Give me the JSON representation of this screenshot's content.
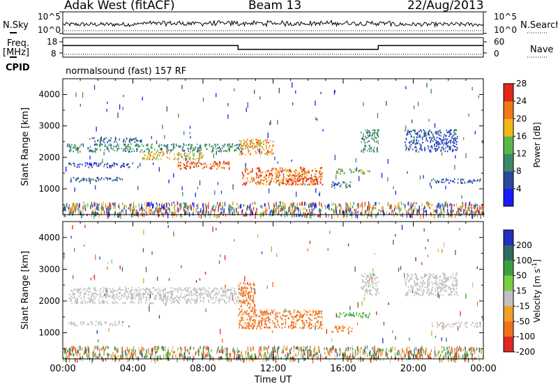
{
  "header": {
    "station": "Adak West (fitACF)",
    "beam": "Beam 13",
    "date": "22/Aug/2013"
  },
  "status_panel": {
    "nsky_label": "N.Sky",
    "nsky_ticks": [
      "10^5",
      "10^0"
    ],
    "nsearch_label": "N.Search",
    "nsearch_ticks": [
      "10^5",
      "10^0"
    ],
    "freq_label": "Freq.",
    "freq_unit": "[MHz]",
    "freq_ticks": [
      18,
      8
    ],
    "nave_label": "Nave",
    "nave_ticks": [
      60,
      0
    ],
    "cpid_label": "CPID",
    "cpid_text": "normalsound (fast) 157 RF",
    "freq_steps": [
      {
        "start": 0,
        "end": 10,
        "freq_mhz": 14.6
      },
      {
        "start": 10,
        "end": 18,
        "freq_mhz": 11.2
      },
      {
        "start": 18,
        "end": 24,
        "freq_mhz": 14.6
      }
    ],
    "nave_level": 8
  },
  "chart_data": [
    {
      "type": "heatmap",
      "title": "",
      "ylabel": "Slant Range [km]",
      "xlabel": "",
      "xlim": [
        0,
        24
      ],
      "ylim": [
        180,
        4500
      ],
      "yticks": [
        1000,
        2000,
        3000,
        4000
      ],
      "colorbar": {
        "label": "Power [dB]",
        "ticks": [
          "4",
          "8",
          "12",
          "16",
          "20",
          "24",
          "28"
        ],
        "colors": [
          "#1a1aff",
          "#2a4aa0",
          "#3c8a6a",
          "#58b84c",
          "#f0b818",
          "#f07818",
          "#e02818"
        ]
      },
      "features": [
        {
          "t0": 0.3,
          "t1": 10.2,
          "r0": 2200,
          "r1": 2450,
          "value": 10
        },
        {
          "t0": 1.5,
          "t1": 4.5,
          "r0": 2500,
          "r1": 2650,
          "value": 7
        },
        {
          "t0": 4.5,
          "t1": 8.0,
          "r0": 1950,
          "r1": 2200,
          "value": 18
        },
        {
          "t0": 6.5,
          "t1": 9.5,
          "r0": 1650,
          "r1": 1900,
          "value": 24
        },
        {
          "t0": 0.3,
          "t1": 4.0,
          "r0": 1700,
          "r1": 1850,
          "value": 5
        },
        {
          "t0": 0.3,
          "t1": 3.5,
          "r0": 1250,
          "r1": 1380,
          "value": 8
        },
        {
          "t0": 10.0,
          "t1": 12.0,
          "r0": 2100,
          "r1": 2600,
          "value": 20
        },
        {
          "t0": 10.2,
          "t1": 14.8,
          "r0": 1150,
          "r1": 1700,
          "value": 22
        },
        {
          "t0": 12.5,
          "t1": 14.5,
          "r0": 1150,
          "r1": 1350,
          "value": 27
        },
        {
          "t0": 15.5,
          "t1": 17.5,
          "r0": 1500,
          "r1": 1650,
          "value": 14
        },
        {
          "t0": 15.3,
          "t1": 16.5,
          "r0": 1050,
          "r1": 1250,
          "value": 8
        },
        {
          "t0": 17.0,
          "t1": 18.0,
          "r0": 2200,
          "r1": 2900,
          "value": 10
        },
        {
          "t0": 19.5,
          "t1": 22.5,
          "r0": 2200,
          "r1": 2900,
          "value": 6
        },
        {
          "t0": 21.0,
          "t1": 23.8,
          "r0": 1200,
          "r1": 1350,
          "value": 6
        }
      ]
    },
    {
      "type": "heatmap",
      "title": "",
      "ylabel": "Slant Range [km]",
      "xlabel": "Time UT",
      "xlim": [
        0,
        24
      ],
      "ylim": [
        180,
        4500
      ],
      "yticks": [
        1000,
        2000,
        3000,
        4000
      ],
      "xticks": [
        "00:00",
        "04:00",
        "08:00",
        "12:00",
        "16:00",
        "20:00",
        "00:00"
      ],
      "colorbar": {
        "label": "Velocity [m s^-1]",
        "ticks": [
          "200",
          "100",
          "50",
          "15",
          "-15",
          "-50",
          "-100",
          "-200"
        ],
        "colors": [
          "#2030c0",
          "#306a60",
          "#3ca040",
          "#78d040",
          "#c0c0c0",
          "#f0a028",
          "#f07020",
          "#e02820"
        ]
      },
      "features": [
        {
          "t0": 0.3,
          "t1": 10.2,
          "r0": 1950,
          "r1": 2450,
          "value": 0
        },
        {
          "t0": 0.3,
          "t1": 3.5,
          "r0": 1250,
          "r1": 1380,
          "value": 0
        },
        {
          "t0": 10.0,
          "t1": 14.8,
          "r0": 1150,
          "r1": 1750,
          "value": -60
        },
        {
          "t0": 10.0,
          "t1": 11.0,
          "r0": 1750,
          "r1": 2600,
          "value": -60
        },
        {
          "t0": 15.5,
          "t1": 17.5,
          "r0": 1500,
          "r1": 1650,
          "value": 40
        },
        {
          "t0": 15.3,
          "t1": 16.5,
          "r0": 1050,
          "r1": 1250,
          "value": -60
        },
        {
          "t0": 17.0,
          "t1": 18.0,
          "r0": 2200,
          "r1": 2900,
          "value": 0
        },
        {
          "t0": 19.5,
          "t1": 22.5,
          "r0": 2200,
          "r1": 2900,
          "value": 0
        },
        {
          "t0": 21.0,
          "t1": 23.8,
          "r0": 1200,
          "r1": 1350,
          "value": 0
        }
      ]
    }
  ]
}
